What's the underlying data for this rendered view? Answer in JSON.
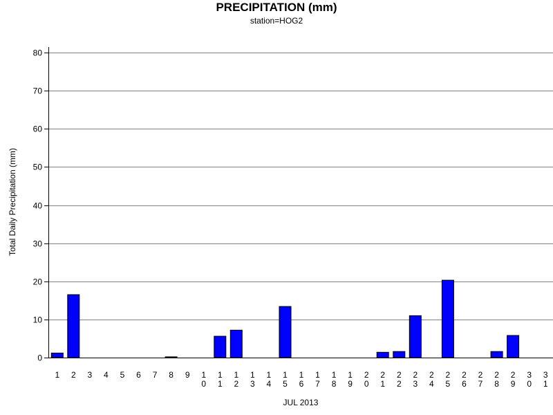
{
  "chart_data": {
    "type": "bar",
    "title": "PRECIPITATION (mm)",
    "subtitle": "station=HOG2",
    "xlabel": "JUL 2013",
    "ylabel": "Total Daily Precipitation (mm)",
    "ylim": [
      0,
      80
    ],
    "yticks": [
      0,
      10,
      20,
      30,
      40,
      50,
      60,
      70,
      80
    ],
    "grid": true,
    "bar_color": "#0000ff",
    "categories": [
      "1",
      "2",
      "3",
      "4",
      "5",
      "6",
      "7",
      "8",
      "9",
      "10",
      "11",
      "12",
      "13",
      "14",
      "15",
      "16",
      "17",
      "18",
      "19",
      "20",
      "21",
      "22",
      "23",
      "24",
      "25",
      "26",
      "27",
      "28",
      "29",
      "30",
      "31"
    ],
    "values": [
      1.2,
      16.5,
      0,
      0,
      0,
      0,
      0,
      0.2,
      0,
      0,
      5.6,
      7.2,
      0,
      0,
      13.4,
      0,
      0,
      0,
      0,
      0,
      1.4,
      1.6,
      11.0,
      0,
      20.3,
      0,
      0,
      1.6,
      5.8,
      0,
      0
    ]
  }
}
